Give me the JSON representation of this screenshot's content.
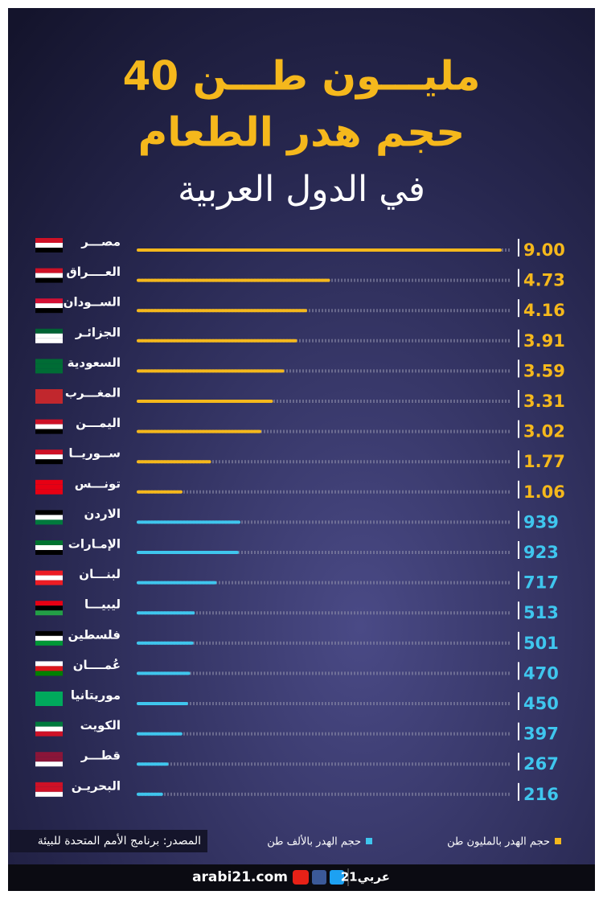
{
  "chart_data": {
    "type": "bar",
    "orientation": "horizontal",
    "title": [
      "40 مليـــون طـــن",
      "حجم هدر الطعام",
      "في الدول العربية"
    ],
    "categories": [
      "مصـــر",
      "العــــراق",
      "الســودان",
      "الجزائـر",
      "السعودية",
      "المغـــرب",
      "اليمـــن",
      "ســوريــا",
      "تونـــس",
      "الاردن",
      "الإمـارات",
      "لبنـــان",
      "ليبيـــا",
      "فلسطين",
      "عُمــــان",
      "موريتانيا",
      "الكويت",
      "قطـــر",
      "البحريـن"
    ],
    "series": [
      {
        "name": "حجم الهدر بالمليون طن",
        "color": "#f5b81c",
        "values": [
          9.0,
          4.73,
          4.16,
          3.91,
          3.59,
          3.31,
          3.02,
          1.77,
          1.06,
          null,
          null,
          null,
          null,
          null,
          null,
          null,
          null,
          null,
          null
        ],
        "value_labels": [
          "9.00",
          "4.73",
          "4.16",
          "3.91",
          "3.59",
          "3.31",
          "3.02",
          "1.77",
          "1.06",
          null,
          null,
          null,
          null,
          null,
          null,
          null,
          null,
          null,
          null
        ]
      },
      {
        "name": "حجم الهدر بالألف طن",
        "color": "#3fc6ee",
        "values": [
          null,
          null,
          null,
          null,
          null,
          null,
          null,
          null,
          null,
          939,
          923,
          717,
          513,
          501,
          470,
          450,
          397,
          267,
          216
        ]
      }
    ],
    "source": "المصدر: برنامج الأمم المتحدة للبيئة",
    "footer": {
      "site": "arabi21.com",
      "brand": "عربي21"
    }
  }
}
